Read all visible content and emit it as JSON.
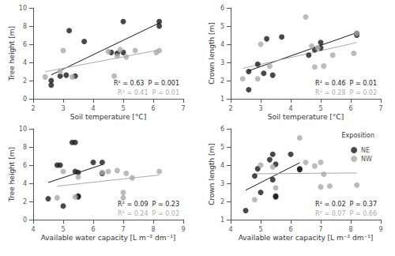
{
  "chart_data": [
    {
      "type": "scatter",
      "x_label": "Soil temperature [°C]",
      "y_label": "Tree height [m]",
      "xlim": [
        2,
        7
      ],
      "xticks": [
        2,
        3,
        4,
        5,
        6,
        7
      ],
      "ylim": [
        0,
        10
      ],
      "yticks": [
        0,
        2,
        4,
        6,
        8,
        10
      ],
      "grid": false,
      "series": [
        {
          "name": "NE",
          "color": "#1a1a1a",
          "x": [
            2.6,
            2.6,
            2.9,
            3.1,
            3.2,
            3.4,
            3.7,
            4.6,
            4.8,
            5.0,
            5.0,
            6.2,
            6.2
          ],
          "values": [
            1.5,
            2.0,
            2.5,
            2.6,
            7.5,
            2.5,
            6.3,
            5.1,
            5.0,
            8.5,
            5.1,
            8.5,
            8.0
          ],
          "fit": {
            "x": [
              2.6,
              6.2
            ],
            "values": [
              2.627,
              8.34
            ]
          },
          "annotation": "R² = 0.63  P = 0.001"
        },
        {
          "name": "NW",
          "color": "#aaaaaa",
          "x": [
            2.4,
            2.9,
            3.0,
            3.3,
            4.5,
            4.7,
            4.8,
            4.9,
            5.1,
            5.4,
            6.1,
            6.2
          ],
          "values": [
            2.4,
            3.0,
            5.3,
            2.4,
            5.2,
            2.5,
            4.7,
            5.4,
            4.6,
            5.3,
            5.1,
            5.3
          ],
          "fit": {
            "x": [
              2.4,
              6.2
            ],
            "values": [
              2.975,
              5.379
            ]
          },
          "annotation": "R² = 0.41  P = 0.01"
        }
      ]
    },
    {
      "type": "scatter",
      "x_label": "Soil temperature [°C]",
      "y_label": "Crown length [m]",
      "xlim": [
        2,
        7
      ],
      "xticks": [
        2,
        3,
        4,
        5,
        6,
        7
      ],
      "ylim": [
        1,
        6
      ],
      "yticks": [
        1,
        2,
        3,
        4,
        5,
        6
      ],
      "grid": false,
      "series": [
        {
          "name": "NE",
          "color": "#1a1a1a",
          "x": [
            2.6,
            2.6,
            2.9,
            3.1,
            3.2,
            3.4,
            3.7,
            4.6,
            4.8,
            5.0,
            5.0,
            6.2,
            6.2
          ],
          "values": [
            1.5,
            2.5,
            2.9,
            2.4,
            4.3,
            2.3,
            4.4,
            3.4,
            3.7,
            3.8,
            4.1,
            4.6,
            4.5
          ],
          "fit": {
            "x": [
              2.6,
              6.2
            ],
            "values": [
              2.543,
              4.637
            ]
          },
          "annotation": "R² = 0.46  P = 0.01"
        },
        {
          "name": "NW",
          "color": "#aaaaaa",
          "x": [
            2.4,
            2.9,
            3.0,
            3.3,
            4.5,
            4.7,
            4.8,
            4.9,
            5.1,
            5.4,
            6.1,
            6.2
          ],
          "values": [
            2.1,
            2.1,
            4.0,
            2.8,
            5.5,
            3.9,
            2.75,
            3.8,
            2.8,
            3.4,
            3.5,
            4.6
          ],
          "fit": {
            "x": [
              2.4,
              6.2
            ],
            "values": [
              2.673,
              4.096
            ]
          },
          "annotation": "R² = 0.28  P = 0.02"
        }
      ]
    },
    {
      "type": "scatter",
      "x_label": "Available water capacity [L m⁻² dm⁻¹]",
      "y_label": "Tree height [m]",
      "xlim": [
        4,
        9
      ],
      "xticks": [
        4,
        5,
        6,
        7,
        8,
        9
      ],
      "ylim": [
        0,
        10
      ],
      "yticks": [
        0,
        2,
        4,
        6,
        8,
        10
      ],
      "grid": false,
      "series": [
        {
          "name": "NE",
          "color": "#1a1a1a",
          "x": [
            4.5,
            4.8,
            4.9,
            5.0,
            5.3,
            5.4,
            5.4,
            5.5,
            5.5,
            5.5,
            6.0,
            6.3,
            6.3
          ],
          "values": [
            2.3,
            6.0,
            6.0,
            1.5,
            8.5,
            8.5,
            5.3,
            5.2,
            2.6,
            2.5,
            6.3,
            6.3,
            5.1
          ],
          "fit": {
            "x": [
              4.5,
              6.3
            ],
            "values": [
              4.084,
              6.052
            ]
          },
          "annotation": "R² = 0.09  P = 0.23"
        },
        {
          "name": "NW",
          "color": "#aaaaaa",
          "x": [
            4.8,
            5.0,
            5.4,
            5.5,
            6.3,
            6.5,
            6.8,
            7.0,
            7.0,
            7.1,
            7.3,
            8.2
          ],
          "values": [
            2.4,
            5.3,
            2.5,
            4.7,
            5.2,
            5.3,
            5.4,
            3.0,
            2.4,
            5.1,
            4.6,
            5.3
          ],
          "fit": {
            "x": [
              4.8,
              8.2
            ],
            "values": [
              3.687,
              4.913
            ]
          },
          "annotation": "R² = 0.24  P = 0.02"
        }
      ]
    },
    {
      "type": "scatter",
      "x_label": "Available water capacity [L m⁻² dm⁻¹]",
      "y_label": "Crown length [m]",
      "xlim": [
        4,
        9
      ],
      "xticks": [
        4,
        5,
        6,
        7,
        8,
        9
      ],
      "ylim": [
        1,
        6
      ],
      "yticks": [
        1,
        2,
        3,
        4,
        5,
        6
      ],
      "grid": false,
      "legend": "upper right",
      "legend_title": "Exposition",
      "series": [
        {
          "name": "NE",
          "color": "#1a1a1a",
          "x": [
            4.5,
            4.8,
            4.9,
            5.0,
            5.3,
            5.4,
            5.4,
            5.5,
            5.5,
            5.5,
            6.0,
            6.3,
            6.3
          ],
          "values": [
            1.5,
            3.4,
            3.8,
            2.5,
            4.3,
            4.6,
            3.2,
            4.05,
            2.25,
            2.3,
            4.6,
            3.8,
            3.75
          ],
          "fit": {
            "x": [
              4.5,
              6.3
            ],
            "values": [
              2.621,
              4.131
            ]
          },
          "annotation": "R² = 0.02  P = 0.37"
        },
        {
          "name": "NW",
          "color": "#aaaaaa",
          "x": [
            4.8,
            5.0,
            5.4,
            5.5,
            6.3,
            6.5,
            6.8,
            7.0,
            7.0,
            7.1,
            7.3,
            8.2
          ],
          "values": [
            2.1,
            4.0,
            3.9,
            2.75,
            5.5,
            4.15,
            3.95,
            4.15,
            2.8,
            3.5,
            2.85,
            2.9
          ],
          "fit": {
            "x": [
              4.8,
              8.2
            ],
            "values": [
              3.524,
              3.57
            ]
          },
          "annotation": "R² = 0.07  P = 0.66"
        }
      ]
    }
  ]
}
